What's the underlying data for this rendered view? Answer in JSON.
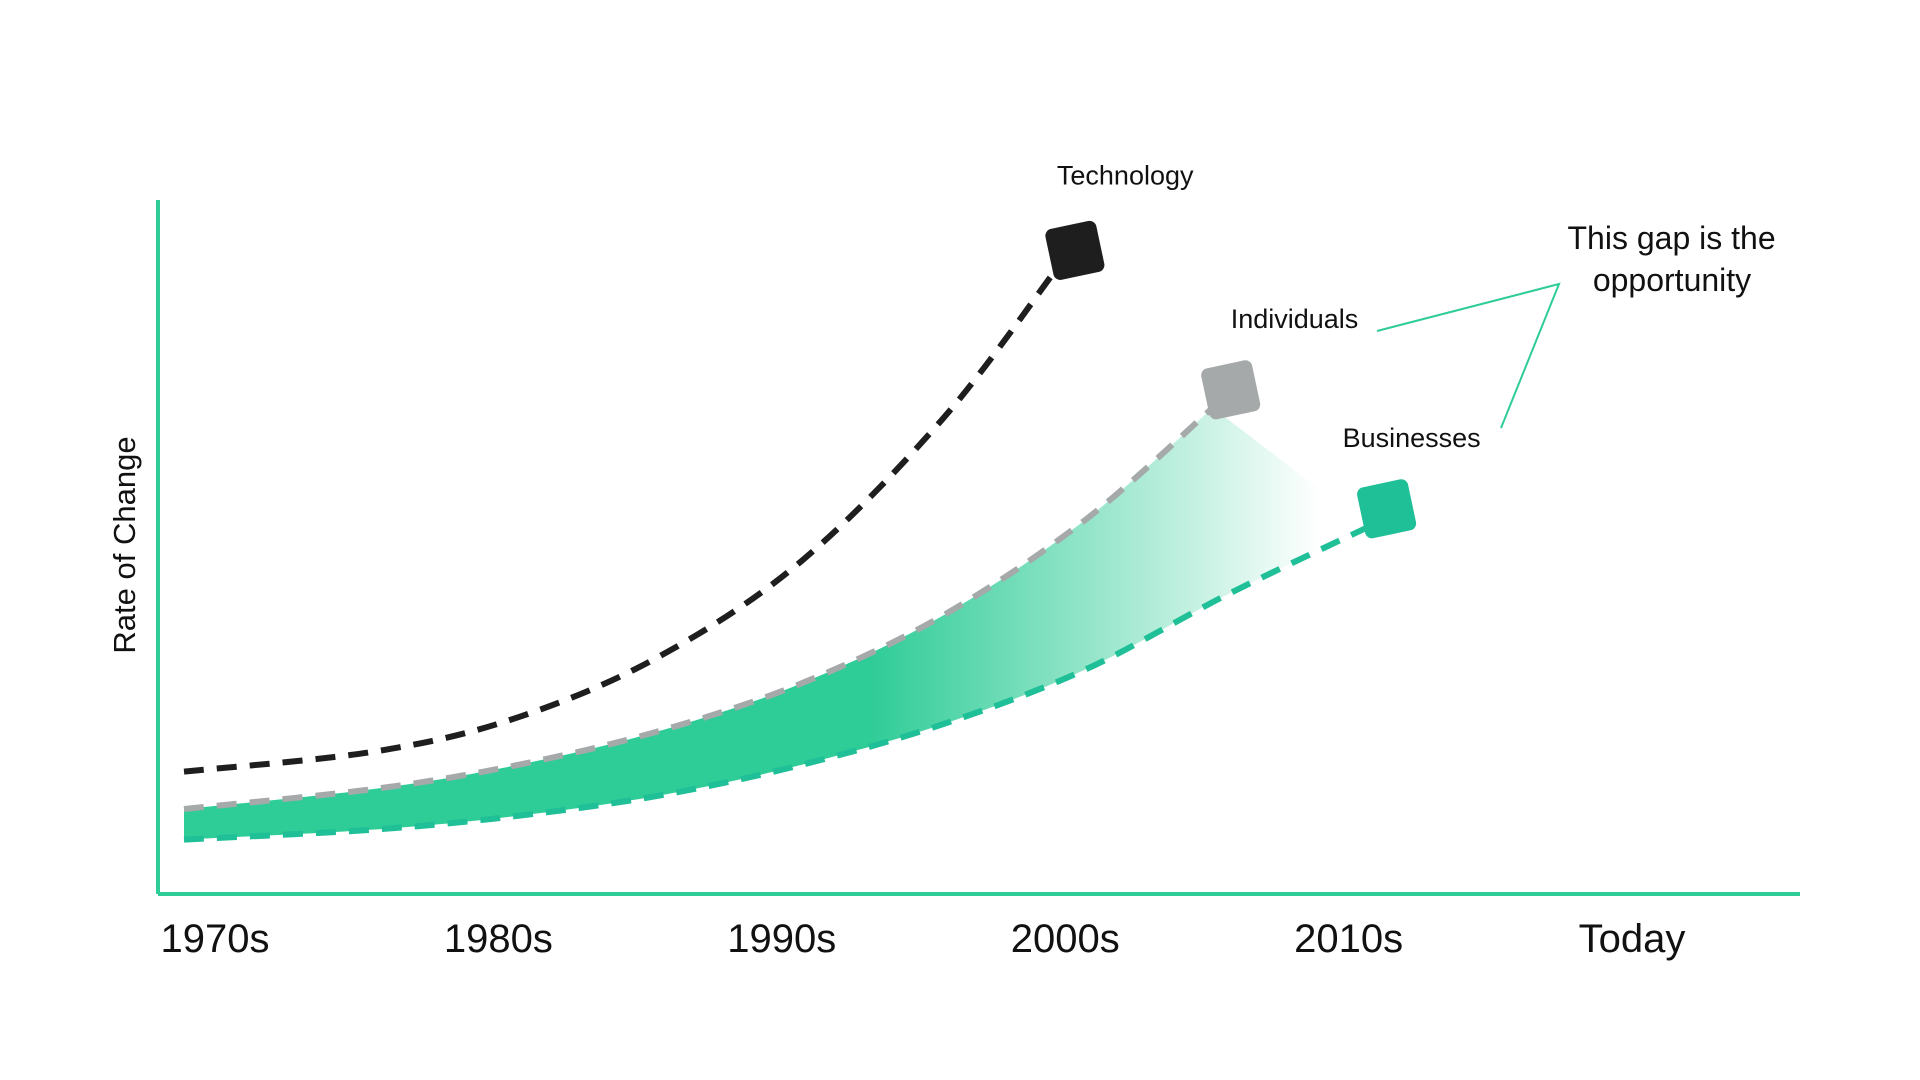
{
  "chart_data": {
    "type": "line",
    "title": "",
    "xlabel": "",
    "ylabel": "Rate of Change",
    "categories": [
      "1970s",
      "1980s",
      "1990s",
      "2000s",
      "2010s",
      "Today"
    ],
    "x_range": [
      0,
      5
    ],
    "y_range": [
      0,
      100
    ],
    "grid": false,
    "legend": "direct-labels",
    "series": [
      {
        "name": "Technology",
        "color": "#1e1e1e",
        "line_style": "dashed",
        "end_marker": "rounded-square",
        "points": [
          [
            -0.18,
            18
          ],
          [
            0.5,
            21
          ],
          [
            1.0,
            26
          ],
          [
            1.5,
            35
          ],
          [
            2.0,
            49
          ],
          [
            2.5,
            70
          ],
          [
            2.9,
            92
          ]
        ]
      },
      {
        "name": "Individuals",
        "color": "#a6a9aa",
        "line_style": "dashed",
        "end_marker": "rounded-square",
        "points": [
          [
            -0.18,
            12.5
          ],
          [
            0.5,
            15.5
          ],
          [
            1.0,
            19
          ],
          [
            1.5,
            24
          ],
          [
            2.0,
            31
          ],
          [
            2.5,
            41
          ],
          [
            3.0,
            55
          ],
          [
            3.45,
            71.5
          ]
        ]
      },
      {
        "name": "Businesses",
        "color": "#1fbf97",
        "line_style": "dashed",
        "end_marker": "rounded-square",
        "points": [
          [
            -0.18,
            8
          ],
          [
            0.5,
            9.5
          ],
          [
            1.0,
            11.5
          ],
          [
            1.5,
            14.5
          ],
          [
            2.0,
            19
          ],
          [
            2.5,
            25
          ],
          [
            3.0,
            33
          ],
          [
            3.5,
            44
          ],
          [
            4.0,
            54
          ]
        ]
      }
    ],
    "annotation": {
      "text_lines": [
        "This gap is the",
        "opportunity"
      ],
      "points_to": [
        "Individuals",
        "Businesses"
      ]
    },
    "colors": {
      "axis": "#2ecc96",
      "gap_fill": "#2ecc96",
      "annotation_line": "#2ecc96",
      "text": "#111111"
    }
  }
}
